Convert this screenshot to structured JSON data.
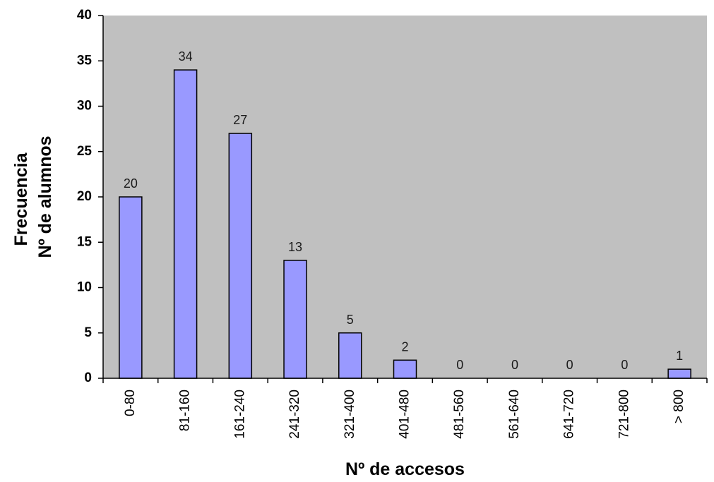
{
  "chart_data": {
    "type": "bar",
    "categories": [
      "0-80",
      "81-160",
      "161-240",
      "241-320",
      "321-400",
      "401-480",
      "481-560",
      "561-640",
      "641-720",
      "721-800",
      "> 800"
    ],
    "values": [
      20,
      34,
      27,
      13,
      5,
      2,
      0,
      0,
      0,
      0,
      1
    ],
    "data_labels": [
      "20",
      "34",
      "27",
      "13",
      "5",
      "2",
      "0",
      "0",
      "0",
      "0",
      "1"
    ],
    "xlabel": "Nº de accesos",
    "ylabel_lines": [
      "Frecuencia",
      "Nº de alumnos"
    ],
    "ylim": [
      0,
      40
    ],
    "yticks": [
      0,
      5,
      10,
      15,
      20,
      25,
      30,
      35,
      40
    ],
    "grid": false,
    "colors": {
      "plot_background": "#c0c0c0",
      "bar_fill": "#9999ff",
      "bar_stroke": "#000000"
    }
  }
}
